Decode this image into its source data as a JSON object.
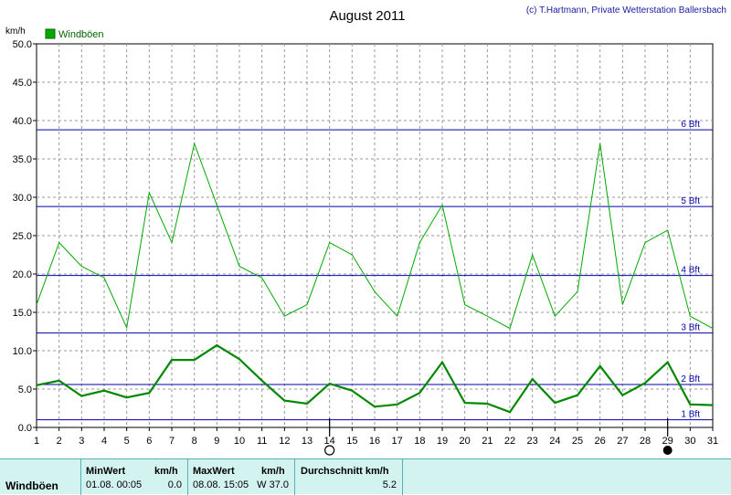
{
  "chart_data": {
    "type": "line",
    "title": "August 2011",
    "credit": "(c) T.Hartmann, Private Wetterstation Ballersbach",
    "y_unit": "km/h",
    "ylim": [
      0,
      50
    ],
    "y_ticks": [
      "0.0",
      "5.0",
      "10.0",
      "15.0",
      "20.0",
      "25.0",
      "30.0",
      "35.0",
      "40.0",
      "45.0",
      "50.0"
    ],
    "x": [
      1,
      2,
      3,
      4,
      5,
      6,
      7,
      8,
      9,
      10,
      11,
      12,
      13,
      14,
      15,
      16,
      17,
      18,
      19,
      20,
      21,
      22,
      23,
      24,
      25,
      26,
      27,
      28,
      29,
      30,
      31
    ],
    "legend": {
      "label": "Windböen",
      "placement": "top-left",
      "color": "#00aa00"
    },
    "grid": true,
    "series": [
      {
        "name": "Windböen",
        "kind": "max",
        "color": "#00aa00",
        "values": [
          16,
          24.1,
          21,
          19.5,
          13,
          30.6,
          24.1,
          37,
          29,
          21,
          19.5,
          14.5,
          16,
          24.1,
          22.5,
          17.7,
          14.5,
          24.1,
          29,
          16,
          14.5,
          12.9,
          22.5,
          14.5,
          17.7,
          37,
          16,
          24.1,
          25.7,
          14.5,
          12.9
        ]
      },
      {
        "kind": "average",
        "color": "#008800",
        "values": [
          5.5,
          6.1,
          4.1,
          4.8,
          3.9,
          4.5,
          8.8,
          8.8,
          10.7,
          8.9,
          6.1,
          3.5,
          3.1,
          5.7,
          4.8,
          2.7,
          3,
          4.5,
          8.5,
          3.2,
          3.1,
          2,
          6.3,
          3.2,
          4.2,
          8,
          4.2,
          5.8,
          8.5,
          3,
          2.9
        ]
      }
    ],
    "beaufort_lines": [
      {
        "label": "1 Bft",
        "value": 1
      },
      {
        "label": "2 Bft",
        "value": 5.6
      },
      {
        "label": "3 Bft",
        "value": 12.3
      },
      {
        "label": "4 Bft",
        "value": 19.8
      },
      {
        "label": "5 Bft",
        "value": 28.8
      },
      {
        "label": "6 Bft",
        "value": 38.8
      }
    ],
    "moon_markers": [
      {
        "day": 14,
        "phase": "full-moon"
      },
      {
        "day": 29,
        "phase": "new-moon"
      }
    ],
    "colors": {
      "beaufort": "#0000aa",
      "grid": "#999999",
      "axis": "#000000"
    }
  },
  "footer": {
    "label": "Windböen",
    "min_header": "MinWert",
    "min_unit": "km/h",
    "min_date": "01.08.  00:05",
    "min_value": "0.0",
    "max_header": "MaxWert",
    "max_unit": "km/h",
    "max_date": "08.08.  15:05",
    "max_value": "W 37.0",
    "avg_header": "Durchschnitt km/h",
    "avg_value": "5.2"
  }
}
